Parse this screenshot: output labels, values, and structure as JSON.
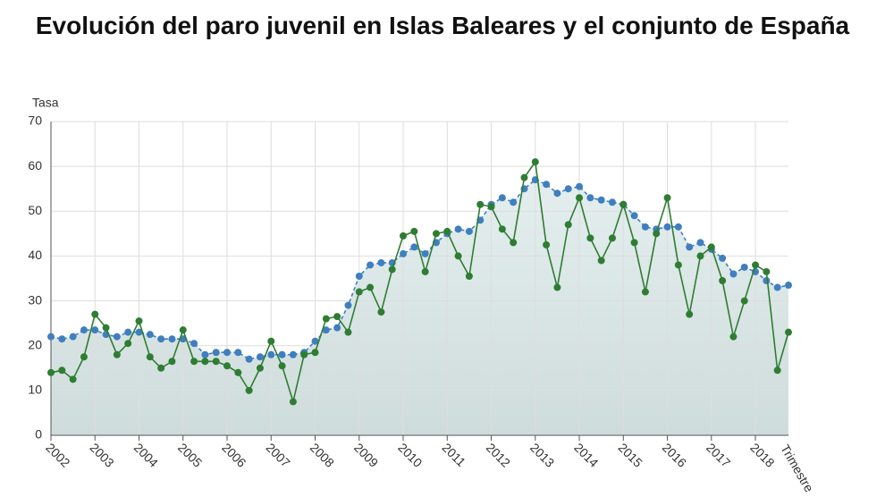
{
  "chart_data": {
    "type": "line",
    "title": "Evolución del paro juvenil en Islas Baleares y el conjunto de España",
    "y_label": "Tasa",
    "x_label": "Trimestre",
    "categories": [
      "2002",
      null,
      null,
      null,
      "2003",
      null,
      null,
      null,
      "2004",
      null,
      null,
      null,
      "2005",
      null,
      null,
      null,
      "2006",
      null,
      null,
      null,
      "2007",
      null,
      null,
      null,
      "2008",
      null,
      null,
      null,
      "2009",
      null,
      null,
      null,
      "2010",
      null,
      null,
      null,
      "2011",
      null,
      null,
      null,
      "2012",
      null,
      null,
      null,
      "2013",
      null,
      null,
      null,
      "2014",
      null,
      null,
      null,
      "2015",
      null,
      null,
      null,
      "2016",
      null,
      null,
      null,
      "2017",
      null,
      null,
      null,
      "2018",
      null,
      null,
      null
    ],
    "series": [
      {
        "color": "#3f7fbf",
        "values": [
          22,
          21.5,
          22,
          23.5,
          23.5,
          22.5,
          22,
          23,
          23,
          22.5,
          21.5,
          21.5,
          21.5,
          20.5,
          18,
          18.5,
          18.5,
          18.5,
          17,
          17.5,
          18,
          18,
          18,
          18.5,
          21,
          23.5,
          24,
          29,
          35.5,
          38,
          38.5,
          38.5,
          40.5,
          42,
          40.5,
          43,
          45,
          46,
          45.5,
          48,
          51.5,
          53,
          52,
          55,
          57,
          56,
          54,
          55,
          55.5,
          53,
          52.5,
          52,
          51.5,
          49,
          46.5,
          46,
          46.5,
          46.5,
          42,
          43,
          41.5,
          39.5,
          36,
          37.5,
          36.5,
          34.5,
          33,
          33.5
        ]
      },
      {
        "color": "#2e7d32",
        "values": [
          14,
          14.5,
          12.5,
          17.5,
          27,
          24,
          18,
          20.5,
          25.5,
          17.5,
          15,
          16.5,
          23.5,
          16.5,
          16.5,
          16.5,
          15.5,
          14,
          10,
          15,
          21,
          15.5,
          7.5,
          18,
          18.5,
          26,
          26.5,
          23,
          32,
          33,
          27.5,
          37,
          44.5,
          45.5,
          36.5,
          45,
          45.5,
          40,
          35.5,
          51.5,
          51,
          46,
          43,
          57.5,
          61,
          42.5,
          33,
          47,
          53,
          44,
          39,
          44,
          51.5,
          43,
          32,
          45,
          53,
          38,
          27,
          40,
          42,
          34.5,
          22,
          30,
          38,
          36.5,
          14.5,
          23
        ]
      }
    ],
    "ylim": [
      0,
      70
    ],
    "yticks": [
      0,
      10,
      20,
      30,
      40,
      50,
      60,
      70
    ],
    "grid": true
  }
}
